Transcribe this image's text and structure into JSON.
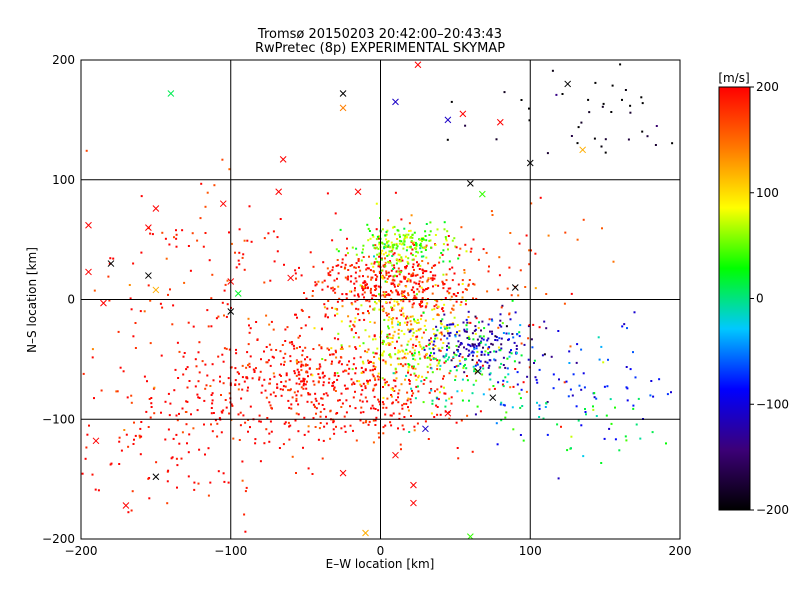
{
  "chart_data": {
    "type": "scatter",
    "title": "Tromsø 20150203 20:42:00–20:43:43",
    "subtitle": "RwPretec (8p) EXPERIMENTAL SKYMAP",
    "xlabel": "E–W location [km]",
    "ylabel": "N–S location [km]",
    "xlim": [
      -200,
      200
    ],
    "ylim": [
      -200,
      200
    ],
    "xticks": [
      "−200",
      "−100",
      "0",
      "100",
      "200"
    ],
    "yticks": [
      "−200",
      "−100",
      "0",
      "100",
      "200"
    ],
    "grid": true,
    "colorbar": {
      "label": "[m/s]",
      "range": [
        -200,
        200
      ],
      "ticks": [
        "−200",
        "−100",
        "0",
        "100",
        "200"
      ],
      "stops": [
        "#000000",
        "#3c0078",
        "#0000ff",
        "#00c8ff",
        "#00ff00",
        "#ffff00",
        "#ff7800",
        "#ff0000"
      ]
    },
    "clusters": [
      {
        "cx": -40,
        "cy": -70,
        "sx": 55,
        "sy": 25,
        "n": 700,
        "v": 200
      },
      {
        "cx": 5,
        "cy": 15,
        "sx": 25,
        "sy": 15,
        "n": 380,
        "v": 195
      },
      {
        "cx": 15,
        "cy": 45,
        "sx": 15,
        "sy": 10,
        "n": 220,
        "v": 55
      },
      {
        "cx": 15,
        "cy": -30,
        "sx": 22,
        "sy": 25,
        "n": 300,
        "v": 90
      },
      {
        "cx": 65,
        "cy": -35,
        "sx": 18,
        "sy": 10,
        "n": 170,
        "v": -120
      },
      {
        "cx": 55,
        "cy": -55,
        "sx": 25,
        "sy": 20,
        "n": 120,
        "v": 10
      },
      {
        "cx": 130,
        "cy": -70,
        "sx": 40,
        "sy": 25,
        "n": 90,
        "v": -90
      },
      {
        "cx": 140,
        "cy": -100,
        "sx": 30,
        "sy": 15,
        "n": 40,
        "v": 20
      },
      {
        "cx": 140,
        "cy": 160,
        "sx": 40,
        "sy": 25,
        "n": 45,
        "v": -200
      },
      {
        "cx": -120,
        "cy": 30,
        "sx": 50,
        "sy": 35,
        "n": 120,
        "v": 190
      },
      {
        "cx": 60,
        "cy": 20,
        "sx": 40,
        "sy": 30,
        "n": 110,
        "v": 180
      },
      {
        "cx": -140,
        "cy": -120,
        "sx": 40,
        "sy": 30,
        "n": 110,
        "v": 200
      }
    ],
    "markers": [
      {
        "x": -140,
        "y": 172,
        "v": 10
      },
      {
        "x": -25,
        "y": 172,
        "v": -200
      },
      {
        "x": 25,
        "y": 196,
        "v": 200
      },
      {
        "x": 10,
        "y": 165,
        "v": -110
      },
      {
        "x": -25,
        "y": 160,
        "v": 140
      },
      {
        "x": 45,
        "y": 150,
        "v": -110
      },
      {
        "x": 55,
        "y": 155,
        "v": 200
      },
      {
        "x": 80,
        "y": 148,
        "v": 200
      },
      {
        "x": 125,
        "y": 180,
        "v": -200
      },
      {
        "x": 100,
        "y": 114,
        "v": -200
      },
      {
        "x": 135,
        "y": 125,
        "v": 120
      },
      {
        "x": -65,
        "y": 117,
        "v": 200
      },
      {
        "x": 60,
        "y": 97,
        "v": -200
      },
      {
        "x": 68,
        "y": 88,
        "v": 40
      },
      {
        "x": -15,
        "y": 90,
        "v": 200
      },
      {
        "x": -68,
        "y": 90,
        "v": 200
      },
      {
        "x": -105,
        "y": 80,
        "v": 200
      },
      {
        "x": -150,
        "y": 76,
        "v": 200
      },
      {
        "x": -155,
        "y": 60,
        "v": 200
      },
      {
        "x": -195,
        "y": 62,
        "v": 200
      },
      {
        "x": -180,
        "y": 30,
        "v": -200
      },
      {
        "x": -155,
        "y": 20,
        "v": -200
      },
      {
        "x": -195,
        "y": 23,
        "v": 200
      },
      {
        "x": -150,
        "y": 8,
        "v": 120
      },
      {
        "x": -100,
        "y": 15,
        "v": 200
      },
      {
        "x": -95,
        "y": 5,
        "v": 20
      },
      {
        "x": -100,
        "y": -10,
        "v": -200
      },
      {
        "x": -185,
        "y": -3,
        "v": 200
      },
      {
        "x": 90,
        "y": 10,
        "v": -200
      },
      {
        "x": -60,
        "y": 18,
        "v": 200
      },
      {
        "x": 65,
        "y": -60,
        "v": -200
      },
      {
        "x": 75,
        "y": -82,
        "v": -200
      },
      {
        "x": 45,
        "y": -95,
        "v": 200
      },
      {
        "x": 30,
        "y": -108,
        "v": -110
      },
      {
        "x": -190,
        "y": -118,
        "v": 200
      },
      {
        "x": -150,
        "y": -148,
        "v": -200
      },
      {
        "x": -170,
        "y": -172,
        "v": 200
      },
      {
        "x": 22,
        "y": -155,
        "v": 200
      },
      {
        "x": 22,
        "y": -170,
        "v": 200
      },
      {
        "x": -10,
        "y": -195,
        "v": 120
      },
      {
        "x": 60,
        "y": -198,
        "v": 40
      },
      {
        "x": -25,
        "y": -145,
        "v": 200
      },
      {
        "x": 10,
        "y": -130,
        "v": 200
      }
    ]
  }
}
